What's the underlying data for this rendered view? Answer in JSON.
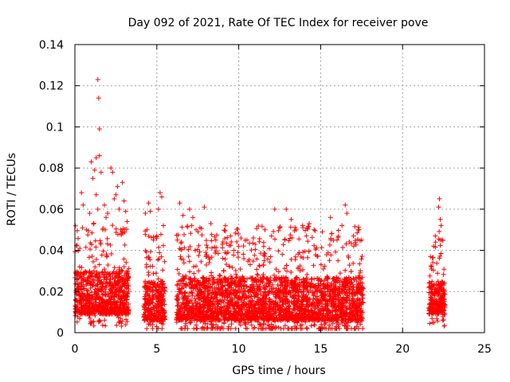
{
  "chart_data": {
    "type": "scatter",
    "title": "Day 092 of 2021, Rate Of TEC Index for receiver pove",
    "xlabel": "GPS time / hours",
    "ylabel": "ROTI / TECUs",
    "xlim": [
      0,
      25
    ],
    "ylim": [
      0,
      0.14
    ],
    "xticks": [
      "0",
      "5",
      "10",
      "15",
      "20",
      "25"
    ],
    "yticks": [
      "0",
      "0.02",
      "0.04",
      "0.06",
      "0.08",
      "0.1",
      "0.12",
      "0.14"
    ],
    "grid": true,
    "marker": "+",
    "color": "#ff0000",
    "segments": [
      {
        "x_start": 0.0,
        "x_end": 3.3,
        "band": [
          0.009,
          0.03
        ]
      },
      {
        "x_start": 4.2,
        "x_end": 5.5,
        "band": [
          0.006,
          0.025
        ]
      },
      {
        "x_start": 6.2,
        "x_end": 17.6,
        "band": [
          0.006,
          0.027
        ]
      },
      {
        "x_start": 21.6,
        "x_end": 22.6,
        "band": [
          0.009,
          0.025
        ]
      }
    ],
    "points": [
      [
        0.3,
        0.041
      ],
      [
        0.4,
        0.068
      ],
      [
        0.5,
        0.062
      ],
      [
        0.7,
        0.05
      ],
      [
        0.9,
        0.058
      ],
      [
        1.0,
        0.083
      ],
      [
        1.1,
        0.075
      ],
      [
        1.2,
        0.079
      ],
      [
        1.3,
        0.085
      ],
      [
        1.4,
        0.123
      ],
      [
        1.45,
        0.114
      ],
      [
        1.5,
        0.099
      ],
      [
        1.5,
        0.086
      ],
      [
        1.6,
        0.078
      ],
      [
        1.4,
        0.06
      ],
      [
        1.3,
        0.067
      ],
      [
        1.7,
        0.05
      ],
      [
        1.9,
        0.056
      ],
      [
        2.0,
        0.058
      ],
      [
        2.2,
        0.08
      ],
      [
        2.3,
        0.078
      ],
      [
        2.5,
        0.067
      ],
      [
        2.6,
        0.071
      ],
      [
        2.7,
        0.06
      ],
      [
        2.9,
        0.073
      ],
      [
        3.0,
        0.064
      ],
      [
        3.1,
        0.059
      ],
      [
        2.8,
        0.05
      ],
      [
        2.4,
        0.065
      ],
      [
        1.8,
        0.062
      ],
      [
        4.3,
        0.058
      ],
      [
        4.5,
        0.063
      ],
      [
        4.6,
        0.059
      ],
      [
        4.4,
        0.05
      ],
      [
        4.8,
        0.045
      ],
      [
        5.1,
        0.06
      ],
      [
        5.2,
        0.068
      ],
      [
        5.3,
        0.066
      ],
      [
        5.4,
        0.052
      ],
      [
        5.0,
        0.047
      ],
      [
        6.4,
        0.063
      ],
      [
        6.6,
        0.057
      ],
      [
        7.0,
        0.06
      ],
      [
        7.2,
        0.056
      ],
      [
        7.4,
        0.05
      ],
      [
        7.9,
        0.061
      ],
      [
        8.3,
        0.053
      ],
      [
        8.6,
        0.045
      ],
      [
        9.0,
        0.043
      ],
      [
        9.5,
        0.047
      ],
      [
        10.0,
        0.042
      ],
      [
        10.5,
        0.045
      ],
      [
        11.0,
        0.043
      ],
      [
        11.6,
        0.05
      ],
      [
        12.0,
        0.047
      ],
      [
        12.2,
        0.06
      ],
      [
        12.5,
        0.051
      ],
      [
        12.9,
        0.06
      ],
      [
        13.2,
        0.055
      ],
      [
        13.5,
        0.05
      ],
      [
        13.9,
        0.052
      ],
      [
        14.3,
        0.053
      ],
      [
        14.6,
        0.05
      ],
      [
        15.1,
        0.049
      ],
      [
        15.6,
        0.056
      ],
      [
        16.0,
        0.045
      ],
      [
        16.3,
        0.052
      ],
      [
        16.5,
        0.062
      ],
      [
        16.6,
        0.058
      ],
      [
        17.0,
        0.047
      ],
      [
        17.3,
        0.05
      ],
      [
        17.5,
        0.045
      ],
      [
        21.7,
        0.037
      ],
      [
        21.9,
        0.042
      ],
      [
        22.0,
        0.047
      ],
      [
        22.2,
        0.061
      ],
      [
        22.25,
        0.065
      ],
      [
        22.3,
        0.055
      ],
      [
        22.35,
        0.052
      ],
      [
        22.4,
        0.045
      ]
    ]
  }
}
